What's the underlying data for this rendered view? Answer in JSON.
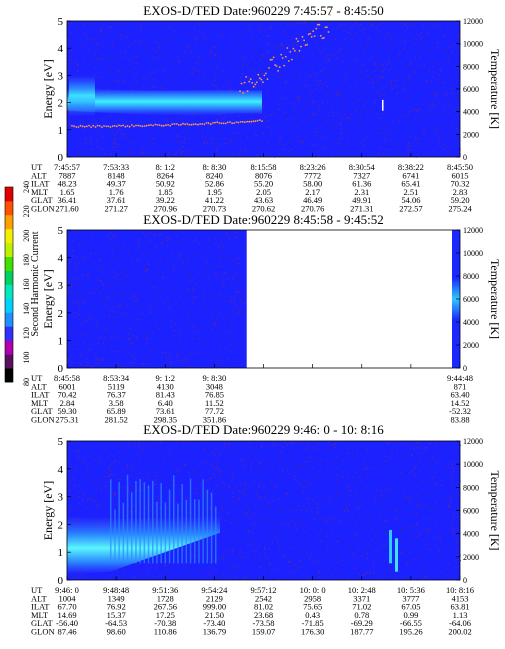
{
  "chart_data": {
    "type": "heatmap",
    "colorbar": {
      "label": "Second Harmonic Current",
      "ticks": [
        "80",
        "100",
        "120",
        "140",
        "160",
        "180",
        "200",
        "220",
        "240"
      ],
      "colors": [
        "#000000",
        "#5a1060",
        "#b000b0",
        "#3030ff",
        "#2090ff",
        "#00d0ff",
        "#00e8c0",
        "#00d060",
        "#40e000",
        "#c0f000",
        "#f0f000",
        "#ffa000",
        "#ff5000",
        "#e00000"
      ]
    },
    "panels": [
      {
        "title": "EXOS-D/TED   Date:960229  7:45:57 - 8:45:50",
        "ylabel": "Energy [eV]",
        "ylabel2": "Temperature [K]",
        "yticks": [
          "0",
          "1",
          "2",
          "3",
          "4",
          "5"
        ],
        "y2ticks": [
          "0",
          "2000",
          "4000",
          "6000",
          "8000",
          "10000",
          "12000"
        ],
        "data_until": 1.0,
        "ylim": [
          0,
          5
        ],
        "y2lim": [
          0,
          12000
        ],
        "rows": [
          {
            "label": "UT",
            "values": [
              "7:45:57",
              "7:53:33",
              "8: 1:2",
              "8: 8:30",
              "8:15:58",
              "8:23:26",
              "8:30:54",
              "8:38:22",
              "8:45:50"
            ]
          },
          {
            "label": "ALT",
            "values": [
              "7887",
              "8148",
              "8264",
              "8240",
              "8076",
              "7772",
              "7327",
              "6741",
              "6015"
            ]
          },
          {
            "label": "ILAT",
            "values": [
              "48.23",
              "49.37",
              "50.92",
              "52.86",
              "55.20",
              "58.00",
              "61.36",
              "65.41",
              "70.32"
            ]
          },
          {
            "label": "MLT",
            "values": [
              "1.65",
              "1.76",
              "1.85",
              "1.95",
              "2.05",
              "2.17",
              "2.31",
              "2.51",
              "2.83"
            ]
          },
          {
            "label": "GLAT",
            "values": [
              "36.41",
              "37.61",
              "39.22",
              "41.22",
              "43.63",
              "46.49",
              "49.91",
              "54.06",
              "59.20"
            ]
          },
          {
            "label": "GLON",
            "values": [
              "271.60",
              "271.27",
              "270.96",
              "270.73",
              "270.62",
              "270.76",
              "271.31",
              "272.57",
              "275.24"
            ]
          }
        ]
      },
      {
        "title": "EXOS-D/TED   Date:960229  8:45:58 - 9:45:52",
        "ylabel": "Energy [eV]",
        "ylabel2": "Temperature [K]",
        "yticks": [
          "0",
          "1",
          "2",
          "3",
          "4",
          "5"
        ],
        "y2ticks": [
          "0",
          "2000",
          "4000",
          "6000",
          "8000",
          "10000",
          "12000"
        ],
        "data_until": 0.456,
        "ylim": [
          0,
          5
        ],
        "y2lim": [
          0,
          12000
        ],
        "rows": [
          {
            "label": "UT",
            "values": [
              "8:45:58",
              "8:53:34",
              "9: 1:2",
              "9: 8:30",
              "",
              "",
              "",
              "",
              "9:44:48"
            ]
          },
          {
            "label": "ALT",
            "values": [
              "6001",
              "5119",
              "4130",
              "3048",
              "",
              "",
              "",
              "",
              "871"
            ]
          },
          {
            "label": "ILAT",
            "values": [
              "70.42",
              "76.37",
              "81.43",
              "76.85",
              "",
              "",
              "",
              "",
              "63.40"
            ]
          },
          {
            "label": "MLT",
            "values": [
              "2.84",
              "3.58",
              "6.40",
              "11.52",
              "",
              "",
              "",
              "",
              "14.52"
            ]
          },
          {
            "label": "GLAT",
            "values": [
              "59.30",
              "65.89",
              "73.61",
              "77.72",
              "",
              "",
              "",
              "",
              "-52.32"
            ]
          },
          {
            "label": "GLON",
            "values": [
              "275.31",
              "281.52",
              "298.35",
              "351.86",
              "",
              "",
              "",
              "",
              "83.88"
            ]
          }
        ]
      },
      {
        "title": "EXOS-D/TED   Date:960229  9:46: 0 - 10: 8:16",
        "ylabel": "Energy [eV]",
        "ylabel2": "Temperature [K]",
        "yticks": [
          "0",
          "1",
          "2",
          "3",
          "4",
          "5"
        ],
        "y2ticks": [
          "0",
          "2000",
          "4000",
          "6000",
          "8000",
          "10000",
          "12000"
        ],
        "data_until": 1.0,
        "ylim": [
          0,
          5
        ],
        "y2lim": [
          0,
          12000
        ],
        "rows": [
          {
            "label": "UT",
            "values": [
              "9:46: 0",
              "9:48:48",
              "9:51:36",
              "9:54:24",
              "9:57:12",
              "10: 0: 0",
              "10: 2:48",
              "10: 5:36",
              "10: 8:16"
            ]
          },
          {
            "label": "ALT",
            "values": [
              "1004",
              "1349",
              "1728",
              "2129",
              "2542",
              "2958",
              "3371",
              "3777",
              "4153"
            ]
          },
          {
            "label": "ILAT",
            "values": [
              "67.70",
              "76.92",
              "267.56",
              "999.00",
              "81.02",
              "75.65",
              "71.02",
              "67.05",
              "63.81"
            ]
          },
          {
            "label": "MLT",
            "values": [
              "14.69",
              "15.37",
              "17.25",
              "21.50",
              "23.68",
              "0.43",
              "0.78",
              "0.99",
              "1.13"
            ]
          },
          {
            "label": "GLAT",
            "values": [
              "-56.40",
              "-64.53",
              "-70.38",
              "-73.40",
              "-73.58",
              "-71.85",
              "-69.29",
              "-66.55",
              "-64.06"
            ]
          },
          {
            "label": "GLON",
            "values": [
              "87.46",
              "98.60",
              "110.86",
              "136.79",
              "159.07",
              "176.30",
              "187.77",
              "195.26",
              "200.02"
            ]
          }
        ]
      }
    ]
  }
}
